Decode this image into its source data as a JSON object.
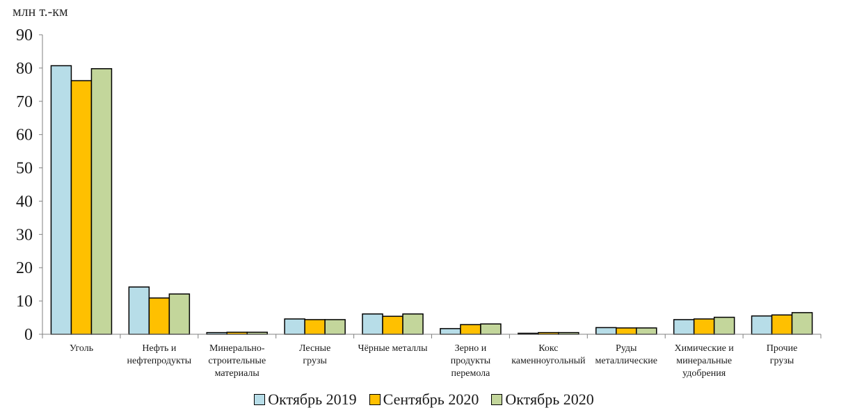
{
  "unit_label": "млн т.-км",
  "chart_data": {
    "type": "bar",
    "ylabel": "млн т.-км",
    "ylim": [
      0,
      90
    ],
    "yticks": [
      0,
      10,
      20,
      30,
      40,
      50,
      60,
      70,
      80,
      90
    ],
    "grid": false,
    "legend_position": "bottom",
    "categories": [
      "Уголь",
      "Нефть и нефтепродукты",
      "Минерально-строительные материалы",
      "Лесные грузы",
      "Чёрные металлы",
      "Зерно и продукты перемола",
      "Кокс каменноугольный",
      "Руды металлические",
      "Химические и минеральные удобрения",
      "Прочие грузы"
    ],
    "category_lines": [
      [
        "Уголь"
      ],
      [
        "Нефть и",
        "нефтепродукты"
      ],
      [
        "Минерально-",
        "строительные",
        "материалы"
      ],
      [
        "Лесные",
        "грузы"
      ],
      [
        "Чёрные металлы"
      ],
      [
        "Зерно и",
        "продукты",
        "перемола"
      ],
      [
        "Кокс",
        "каменноугольный"
      ],
      [
        "Руды",
        "металлические"
      ],
      [
        "Химические и",
        "минеральные",
        "удобрения"
      ],
      [
        "Прочие",
        "грузы"
      ]
    ],
    "series": [
      {
        "name": "Октябрь 2019",
        "color": "#b7dde8",
        "values": [
          80.7,
          14.2,
          0.5,
          4.6,
          6.1,
          1.7,
          0.3,
          2.0,
          4.4,
          5.5
        ]
      },
      {
        "name": "Сентябрь 2020",
        "color": "#ffc000",
        "values": [
          76.2,
          10.9,
          0.6,
          4.4,
          5.4,
          2.9,
          0.5,
          1.9,
          4.6,
          5.8
        ]
      },
      {
        "name": "Октябрь 2020",
        "color": "#c3d69b",
        "values": [
          79.8,
          12.1,
          0.6,
          4.4,
          6.1,
          3.1,
          0.5,
          1.9,
          5.1,
          6.5
        ]
      }
    ]
  }
}
